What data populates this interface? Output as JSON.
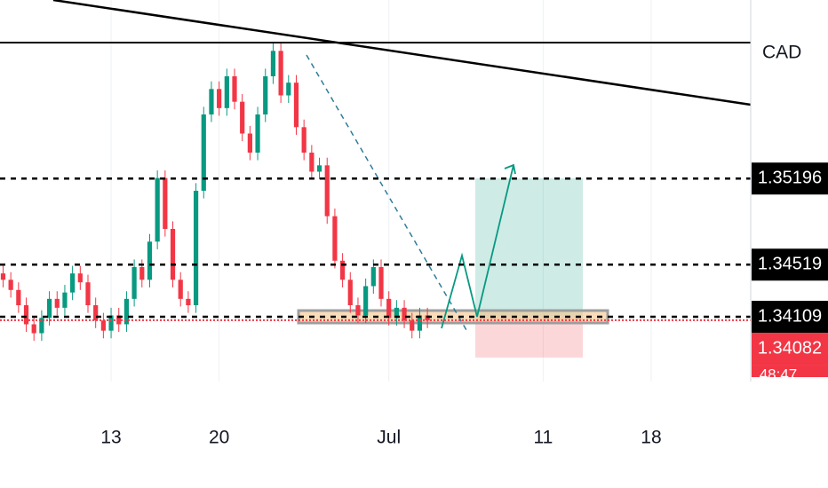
{
  "chart_data": {
    "type": "candlestick",
    "currency": "CAD",
    "x": [
      6,
      6.5,
      7,
      7.5,
      8,
      8.5,
      9,
      9.5,
      10,
      10.5,
      11,
      11.5,
      12,
      12.5,
      13,
      13.5,
      14,
      14.5,
      15,
      15.5,
      16,
      16.5,
      17,
      17.5,
      18,
      18.5,
      19,
      19.5,
      20,
      20.5,
      21,
      21.5,
      22,
      22.5,
      23,
      23.5,
      24,
      24.5,
      25,
      25.5,
      26,
      26.5,
      27,
      27.5,
      28,
      28.5,
      29,
      29.5,
      30,
      30.5,
      31,
      31.5,
      32,
      32.5,
      33,
      33.5
    ],
    "open": [
      1.3445,
      1.344,
      1.3432,
      1.342,
      1.3405,
      1.3398,
      1.341,
      1.3425,
      1.3418,
      1.343,
      1.3445,
      1.3438,
      1.342,
      1.3408,
      1.34,
      1.3412,
      1.3405,
      1.3425,
      1.345,
      1.344,
      1.347,
      1.352,
      1.348,
      1.344,
      1.3425,
      1.342,
      1.351,
      1.357,
      1.359,
      1.3575,
      1.36,
      1.358,
      1.3555,
      1.354,
      1.357,
      1.36,
      1.362,
      1.3585,
      1.3595,
      1.356,
      1.354,
      1.3525,
      1.353,
      1.349,
      1.3455,
      1.344,
      1.342,
      1.3412,
      1.3435,
      1.345,
      1.3425,
      1.341,
      1.3418,
      1.3408,
      1.34,
      1.3412
    ],
    "high": [
      1.3451,
      1.3446,
      1.3438,
      1.3426,
      1.3411,
      1.3416,
      1.3431,
      1.3431,
      1.3436,
      1.3451,
      1.3451,
      1.3444,
      1.3426,
      1.3414,
      1.3418,
      1.3418,
      1.3431,
      1.3456,
      1.3456,
      1.3476,
      1.3526,
      1.3526,
      1.3486,
      1.3446,
      1.3431,
      1.3516,
      1.3576,
      1.3596,
      1.3596,
      1.3606,
      1.3606,
      1.3586,
      1.3561,
      1.3576,
      1.3606,
      1.3626,
      1.3626,
      1.3601,
      1.3601,
      1.3566,
      1.3546,
      1.3536,
      1.3536,
      1.3496,
      1.3461,
      1.3446,
      1.3426,
      1.3441,
      1.3456,
      1.3456,
      1.3431,
      1.3424,
      1.3424,
      1.3414,
      1.3418,
      1.3418
    ],
    "low": [
      1.3434,
      1.3426,
      1.3414,
      1.3399,
      1.3392,
      1.3392,
      1.3404,
      1.3412,
      1.3412,
      1.3424,
      1.3432,
      1.3414,
      1.3402,
      1.3394,
      1.3394,
      1.3399,
      1.3399,
      1.3419,
      1.3434,
      1.3434,
      1.3464,
      1.3474,
      1.3434,
      1.3419,
      1.3414,
      1.3414,
      1.3504,
      1.3564,
      1.3569,
      1.3569,
      1.3574,
      1.3549,
      1.3534,
      1.3534,
      1.3564,
      1.3594,
      1.3579,
      1.3579,
      1.3554,
      1.3534,
      1.3519,
      1.3519,
      1.3484,
      1.3449,
      1.3434,
      1.3414,
      1.3406,
      1.3406,
      1.3429,
      1.3419,
      1.3404,
      1.3404,
      1.3402,
      1.3394,
      1.3394,
      1.3402
    ],
    "close": [
      1.344,
      1.3432,
      1.342,
      1.3405,
      1.3398,
      1.341,
      1.3425,
      1.3418,
      1.343,
      1.3445,
      1.3438,
      1.342,
      1.3408,
      1.34,
      1.3412,
      1.3405,
      1.3425,
      1.345,
      1.344,
      1.347,
      1.352,
      1.348,
      1.344,
      1.3425,
      1.342,
      1.351,
      1.357,
      1.359,
      1.3575,
      1.36,
      1.358,
      1.3555,
      1.354,
      1.357,
      1.36,
      1.362,
      1.3585,
      1.3595,
      1.356,
      1.354,
      1.3525,
      1.353,
      1.349,
      1.3455,
      1.344,
      1.342,
      1.3412,
      1.3435,
      1.345,
      1.3425,
      1.341,
      1.3418,
      1.3408,
      1.34,
      1.3412,
      1.3408
    ],
    "up_color": "#089981",
    "down_color": "#f23645",
    "xlim": [
      5.8,
      54.45
    ],
    "ylim": [
      1.336,
      1.366
    ],
    "xticks": [
      13,
      20,
      {
        "value": 31,
        "label": "Jul"
      },
      {
        "value": 41,
        "label": "11"
      },
      {
        "value": 48,
        "label": "18"
      }
    ],
    "price_levels": [
      1.35196,
      1.34519,
      1.34109
    ],
    "last_price": 1.34082,
    "last_price_color": "#f23645",
    "countdown": "48:47"
  }
}
